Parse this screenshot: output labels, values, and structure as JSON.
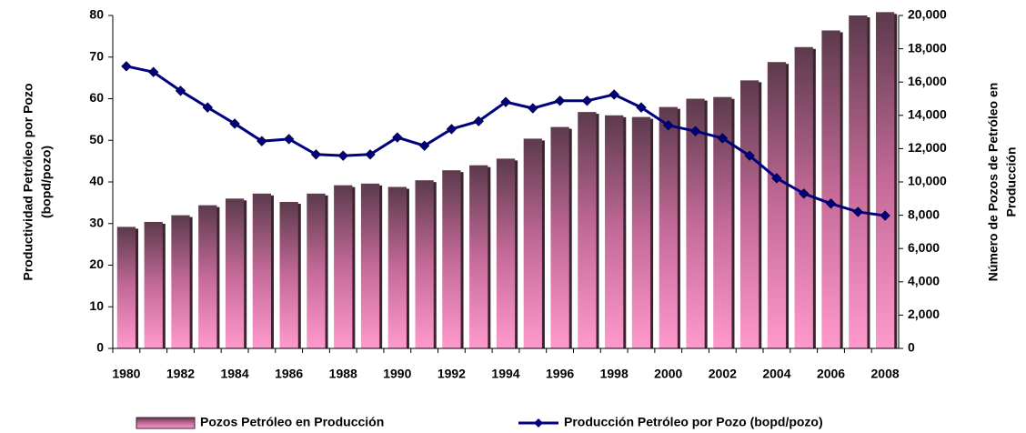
{
  "chart_data": {
    "type": "bar_line",
    "y_label": [
      "Productividad Petróleo por Pozo",
      "(bopd/pozo)"
    ],
    "y2_label": [
      "Número de Pozos de Petróleo en",
      "Producción"
    ],
    "categories": [
      "1980",
      null,
      "1982",
      null,
      "1984",
      null,
      "1986",
      null,
      "1988",
      null,
      "1990",
      null,
      "1992",
      null,
      "1994",
      null,
      "1996",
      null,
      "1998",
      null,
      "2000",
      null,
      "2002",
      null,
      "2004",
      null,
      "2006",
      null,
      "2008"
    ],
    "series": [
      {
        "name": "Pozos Petróleo en Producción",
        "type": "bar",
        "axis": "y2",
        "color": "#ff99cc",
        "values": [
          7300,
          7600,
          8000,
          8600,
          9000,
          9300,
          8800,
          9300,
          9800,
          9900,
          9700,
          10100,
          10700,
          11000,
          11400,
          12600,
          13300,
          14200,
          14000,
          13900,
          14500,
          15000,
          15100,
          16100,
          17200,
          18100,
          19100,
          20000,
          20200
        ]
      },
      {
        "name": "Producción Petróleo por Pozo (bopd/pozo)",
        "type": "line",
        "axis": "y",
        "color": "#000080",
        "values": [
          67.8,
          66.4,
          61.9,
          57.9,
          54.0,
          49.8,
          50.3,
          46.6,
          46.3,
          46.6,
          50.7,
          48.7,
          52.7,
          54.6,
          59.2,
          57.7,
          59.5,
          59.5,
          61.0,
          57.9,
          53.6,
          52.2,
          50.5,
          46.3,
          40.9,
          37.2,
          34.8,
          32.8,
          31.9
        ]
      }
    ],
    "ylim": [
      0,
      80
    ],
    "yticks": [
      0,
      10,
      20,
      30,
      40,
      50,
      60,
      70,
      80
    ],
    "y2lim": [
      0,
      20000
    ],
    "y2ticks": [
      0,
      {
        "value": 2000,
        "label": "2,000"
      },
      {
        "value": 4000,
        "label": "4,000"
      },
      {
        "value": 6000,
        "label": "6,000"
      },
      {
        "value": 8000,
        "label": "8,000"
      },
      {
        "value": 10000,
        "label": "10,000"
      },
      {
        "value": 12000,
        "label": "12,000"
      },
      {
        "value": 14000,
        "label": "14,000"
      },
      {
        "value": 16000,
        "label": "16,000"
      },
      {
        "value": 18000,
        "label": "18,000"
      },
      {
        "value": 20000,
        "label": "20,000"
      }
    ],
    "grid": false,
    "legend": "bottom"
  }
}
